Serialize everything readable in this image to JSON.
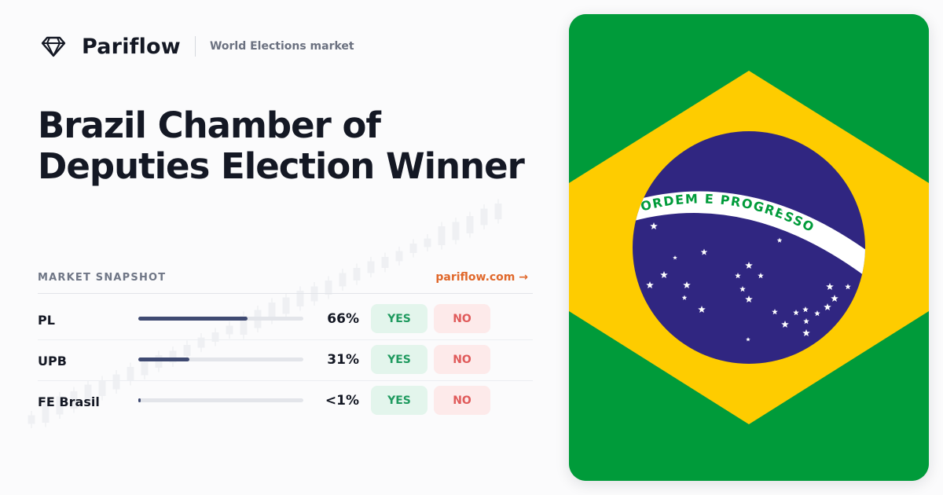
{
  "brand": {
    "name": "Pariflow",
    "section": "World Elections market",
    "logo_icon": "diamond-icon"
  },
  "title": "Brazil Chamber of Deputies Election Winner",
  "snapshot": {
    "heading": "MARKET SNAPSHOT",
    "link": "pariflow.com →"
  },
  "outcomes": [
    {
      "name": "PL",
      "percent_label": "66%",
      "probability": 0.66,
      "yes": "YES",
      "no": "NO"
    },
    {
      "name": "UPB",
      "percent_label": "31%",
      "probability": 0.31,
      "yes": "YES",
      "no": "NO"
    },
    {
      "name": "FE Brasil",
      "percent_label": "<1%",
      "probability": 0.005,
      "yes": "YES",
      "no": "NO"
    }
  ],
  "flag": {
    "country": "Brazil",
    "motto": "ORDEM E PROGRESSO",
    "colors": {
      "green": "#009b3a",
      "yellow": "#fecc00",
      "blue": "#302681",
      "white": "#ffffff"
    }
  },
  "colors": {
    "accent": "#e0682b",
    "yes_text": "#1f9a5f",
    "no_text": "#e05b5b",
    "bar_fill": "#3f4a72"
  }
}
